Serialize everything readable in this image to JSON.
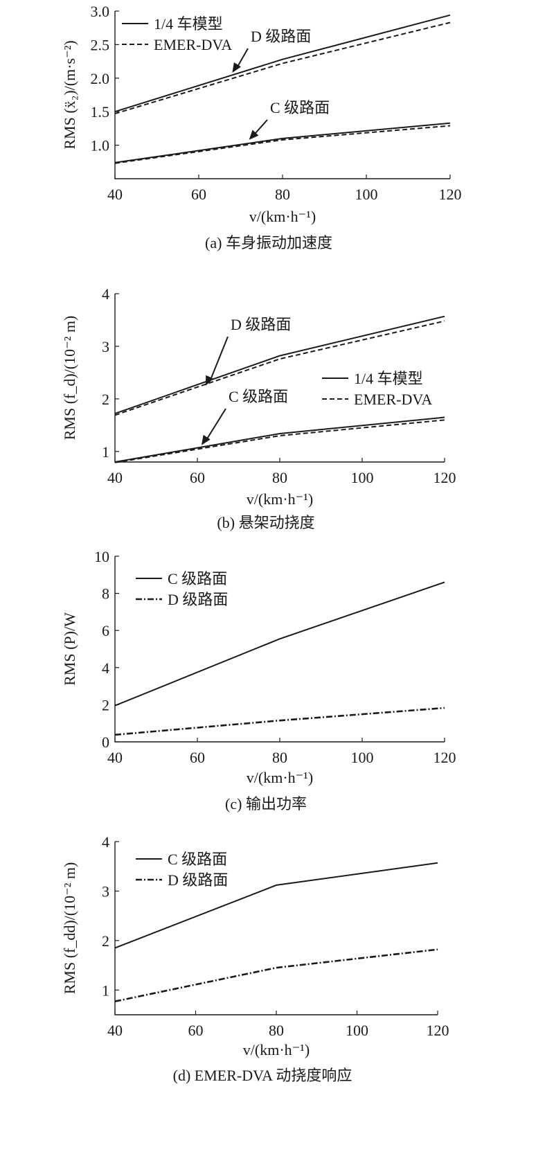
{
  "chart_data": [
    {
      "type": "line",
      "caption": "(a) 车身振动加速度",
      "ylabel": "RMS (ẍ₂)/(m·s⁻²)",
      "xlabel": "v/(km·h⁻¹)",
      "x": [
        40,
        80,
        120
      ],
      "xlim": [
        40,
        120
      ],
      "ylim": [
        0.5,
        3.0
      ],
      "xticks": [
        "40",
        "60",
        "80",
        "100",
        "120"
      ],
      "yticks": [
        "1.0",
        "1.5",
        "2.0",
        "2.5",
        "3.0"
      ],
      "legend": [
        {
          "label": "1/4 车模型",
          "style": "solid"
        },
        {
          "label": "EMER-DVA",
          "style": "dash"
        }
      ],
      "legend_position": "top-left",
      "series": [
        {
          "name": "1/4 车模型",
          "group": "D 级路面",
          "style": "solid",
          "values": [
            1.5,
            2.28,
            2.94
          ]
        },
        {
          "name": "EMER-DVA",
          "group": "D 级路面",
          "style": "dash",
          "values": [
            1.47,
            2.22,
            2.83
          ]
        },
        {
          "name": "1/4 车模型",
          "group": "C 级路面",
          "style": "solid",
          "values": [
            0.74,
            1.1,
            1.33
          ]
        },
        {
          "name": "EMER-DVA",
          "group": "C 级路面",
          "style": "dash",
          "values": [
            0.73,
            1.08,
            1.29
          ]
        }
      ],
      "annotations": [
        {
          "text": "D 级路面",
          "arrow_x": 68,
          "arrow_y": 2.08
        },
        {
          "text": "C 级路面",
          "arrow_x": 72,
          "arrow_y": 1.08
        }
      ]
    },
    {
      "type": "line",
      "caption": "(b) 悬架动挠度",
      "ylabel": "RMS (f_d)/(10⁻² m)",
      "xlabel": "v/(km·h⁻¹)",
      "x": [
        40,
        80,
        120
      ],
      "xlim": [
        40,
        120
      ],
      "ylim": [
        0.8,
        4.0
      ],
      "xticks": [
        "40",
        "60",
        "80",
        "100",
        "120"
      ],
      "yticks": [
        "1",
        "2",
        "3",
        "4"
      ],
      "legend": [
        {
          "label": "1/4 车模型",
          "style": "solid"
        },
        {
          "label": "EMER-DVA",
          "style": "dash"
        }
      ],
      "legend_position": "middle-right",
      "series": [
        {
          "name": "1/4 车模型",
          "group": "D 级路面",
          "style": "solid",
          "values": [
            1.72,
            2.82,
            3.57
          ]
        },
        {
          "name": "EMER-DVA",
          "group": "D 级路面",
          "style": "dash",
          "values": [
            1.69,
            2.76,
            3.48
          ]
        },
        {
          "name": "1/4 车模型",
          "group": "C 级路面",
          "style": "solid",
          "values": [
            0.8,
            1.34,
            1.65
          ]
        },
        {
          "name": "EMER-DVA",
          "group": "C 级路面",
          "style": "dash",
          "values": [
            0.79,
            1.3,
            1.6
          ]
        }
      ],
      "annotations": [
        {
          "text": "D 级路面",
          "arrow_x": 62,
          "arrow_y": 2.25
        },
        {
          "text": "C 级路面",
          "arrow_x": 61,
          "arrow_y": 1.12
        }
      ]
    },
    {
      "type": "line",
      "caption": "(c) 输出功率",
      "ylabel": "RMS (P)/W",
      "xlabel": "v/(km·h⁻¹)",
      "x": [
        40,
        80,
        120
      ],
      "xlim": [
        40,
        120
      ],
      "ylim": [
        0,
        10
      ],
      "xticks": [
        "40",
        "60",
        "80",
        "100",
        "120"
      ],
      "yticks": [
        "0",
        "2",
        "4",
        "6",
        "8",
        "10"
      ],
      "legend": [
        {
          "label": "C 级路面",
          "style": "solid"
        },
        {
          "label": "D 级路面",
          "style": "dashdot"
        }
      ],
      "legend_position": "top-left",
      "series": [
        {
          "name": "C 级路面",
          "style": "solid",
          "values": [
            1.95,
            5.55,
            8.6
          ]
        },
        {
          "name": "D 级路面",
          "style": "dashdot",
          "values": [
            0.38,
            1.15,
            1.83
          ]
        }
      ],
      "annotations": []
    },
    {
      "type": "line",
      "caption": "(d) EMER-DVA 动挠度响应",
      "ylabel": "RMS (f_dd)/(10⁻² m)",
      "xlabel": "v/(km·h⁻¹)",
      "x": [
        40,
        80,
        120
      ],
      "xlim": [
        40,
        120
      ],
      "ylim": [
        0.5,
        4.0
      ],
      "xticks": [
        "40",
        "60",
        "80",
        "100",
        "120"
      ],
      "yticks": [
        "1",
        "2",
        "3",
        "4"
      ],
      "legend": [
        {
          "label": "C 级路面",
          "style": "solid"
        },
        {
          "label": "D 级路面",
          "style": "dashdot"
        }
      ],
      "legend_position": "top-left",
      "series": [
        {
          "name": "C 级路面",
          "style": "solid",
          "values": [
            1.85,
            3.12,
            3.57
          ]
        },
        {
          "name": "D 级路面",
          "style": "dashdot",
          "values": [
            0.77,
            1.45,
            1.82
          ]
        }
      ],
      "annotations": []
    }
  ]
}
